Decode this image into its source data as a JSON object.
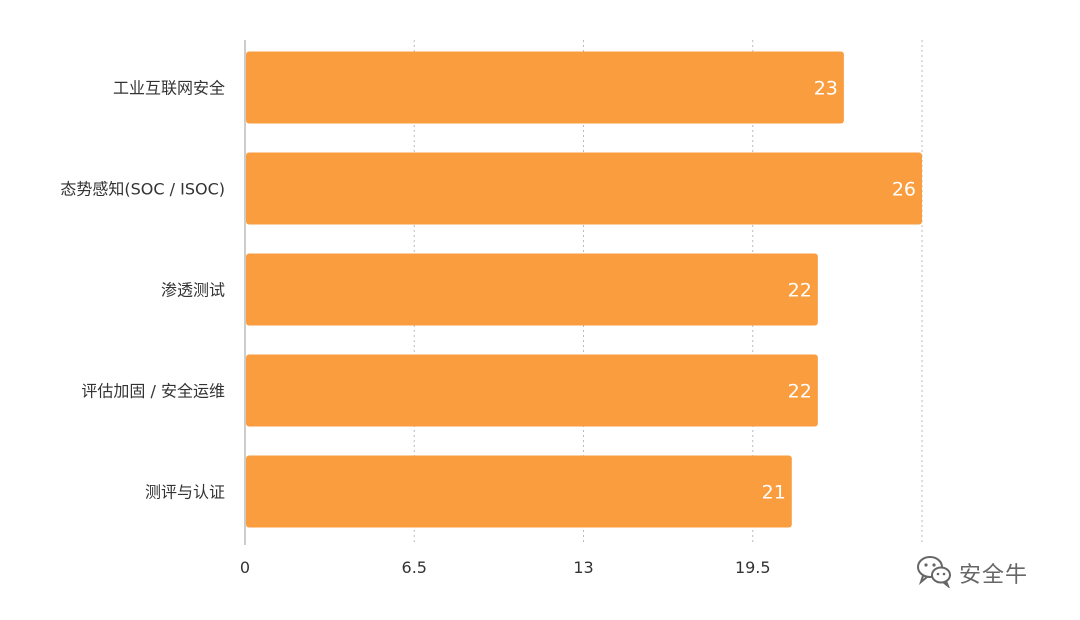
{
  "chart_data": {
    "type": "bar",
    "orientation": "horizontal",
    "categories": [
      "工业互联网安全",
      "态势感知(SOC / ISOC)",
      "渗透测试",
      "评估加固 / 安全运维",
      "测评与认证"
    ],
    "values": [
      23,
      26,
      22,
      22,
      21
    ],
    "x_ticks": [
      "0",
      "6.5",
      "13",
      "19.5"
    ],
    "xlim": [
      0,
      26
    ],
    "grid": "vertical-dashed",
    "title": "",
    "xlabel": "",
    "ylabel": ""
  },
  "colors": {
    "bar": "#FA9D3F",
    "value_text": "#ffffff",
    "label_text": "#333333",
    "grid": "#bbbbbb",
    "axis": "#999999"
  },
  "watermark": {
    "text": "安全牛",
    "icon": "wechat-icon"
  }
}
